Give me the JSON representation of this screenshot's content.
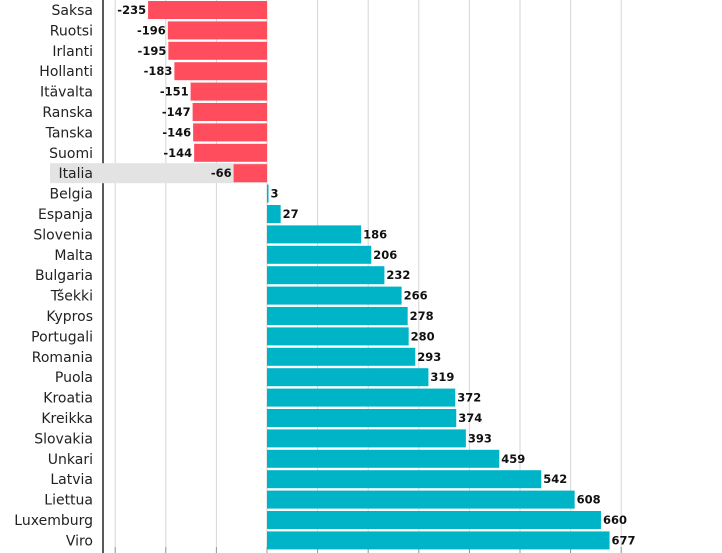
{
  "chart_data": {
    "type": "bar",
    "orientation": "horizontal",
    "title": "",
    "xlabel": "",
    "ylabel": "",
    "xlim": [
      -300,
      700
    ],
    "grid": true,
    "highlighted_category": "Italia",
    "colors": {
      "negative": "#ff4d5e",
      "positive": "#00b4c8",
      "highlight_band": "#e3e3e3",
      "grid": "#d6d6d6",
      "axis": "#222222"
    },
    "categories": [
      "Saksa",
      "Ruotsi",
      "Irlanti",
      "Hollanti",
      "Itävalta",
      "Ranska",
      "Tanska",
      "Suomi",
      "Italia",
      "Belgia",
      "Espanja",
      "Slovenia",
      "Malta",
      "Bulgaria",
      "Tšekki",
      "Kypros",
      "Portugali",
      "Romania",
      "Puola",
      "Kroatia",
      "Kreikka",
      "Slovakia",
      "Unkari",
      "Latvia",
      "Liettua",
      "Luxemburg",
      "Viro"
    ],
    "values": [
      -235,
      -196,
      -195,
      -183,
      -151,
      -147,
      -146,
      -144,
      -66,
      3,
      27,
      186,
      206,
      232,
      266,
      278,
      280,
      293,
      319,
      372,
      374,
      393,
      459,
      542,
      608,
      660,
      677
    ],
    "value_labels": [
      "-235",
      "-196",
      "-195",
      "-183",
      "-151",
      "-147",
      "-146",
      "-144",
      "-66",
      "3",
      "27",
      "186",
      "206",
      "232",
      "266",
      "278",
      "280",
      "293",
      "319",
      "372",
      "374",
      "393",
      "459",
      "542",
      "608",
      "660",
      "677"
    ]
  }
}
